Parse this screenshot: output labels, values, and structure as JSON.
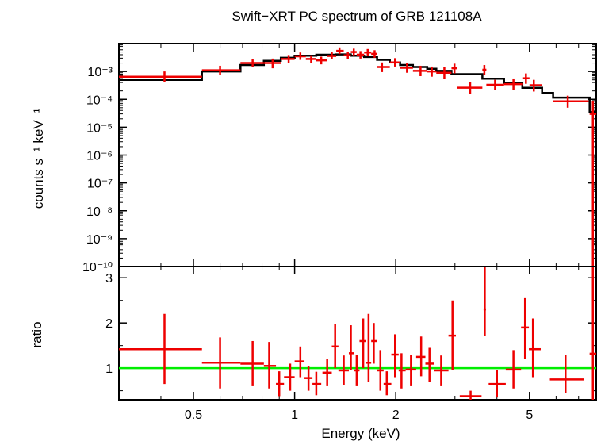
{
  "chart_data": {
    "type": "scatter",
    "title": "Swift−XRT PC spectrum of GRB 121108A",
    "xlabel": "Energy (keV)",
    "x_scale": "log",
    "xlim": [
      0.3,
      7.9
    ],
    "x_ticks": [
      {
        "value": 0.5,
        "label": "0.5"
      },
      {
        "value": 1,
        "label": "1"
      },
      {
        "value": 2,
        "label": "2"
      },
      {
        "value": 5,
        "label": "5"
      }
    ],
    "colors": {
      "data": "#ee0000",
      "model": "#000000",
      "unity": "#00ee00"
    },
    "panels": [
      {
        "id": "spectrum",
        "ylabel": "counts s⁻¹ keV⁻¹",
        "y_scale": "log",
        "ylim": [
          1e-10,
          0.01
        ],
        "y_ticks": [
          {
            "value": 0.001,
            "label": "10⁻³"
          },
          {
            "value": 0.0001,
            "label": "10⁻⁴"
          },
          {
            "value": 1e-05,
            "label": "10⁻⁵"
          },
          {
            "value": 1e-06,
            "label": "10⁻⁶"
          },
          {
            "value": 1e-07,
            "label": "10⁻⁷"
          },
          {
            "value": 1e-08,
            "label": "10⁻⁸"
          },
          {
            "value": 1e-09,
            "label": "10⁻⁹"
          },
          {
            "value": 1e-10,
            "label": "10⁻¹⁰"
          }
        ],
        "data": [
          {
            "x": 0.41,
            "xlo": 0.3,
            "xhi": 0.53,
            "y": 0.00065,
            "ylo": 0.00042,
            "yhi": 0.001
          },
          {
            "x": 0.6,
            "xlo": 0.53,
            "xhi": 0.69,
            "y": 0.0011,
            "ylo": 0.00075,
            "yhi": 0.0016
          },
          {
            "x": 0.75,
            "xlo": 0.69,
            "xhi": 0.81,
            "y": 0.002,
            "ylo": 0.0014,
            "yhi": 0.0028
          },
          {
            "x": 0.86,
            "xlo": 0.81,
            "xhi": 0.91,
            "y": 0.002,
            "ylo": 0.0013,
            "yhi": 0.0029
          },
          {
            "x": 0.96,
            "xlo": 0.91,
            "xhi": 1.0,
            "y": 0.0028,
            "ylo": 0.002,
            "yhi": 0.0039
          },
          {
            "x": 1.04,
            "xlo": 1.0,
            "xhi": 1.08,
            "y": 0.0035,
            "ylo": 0.0026,
            "yhi": 0.0048
          },
          {
            "x": 1.12,
            "xlo": 1.08,
            "xhi": 1.16,
            "y": 0.0028,
            "ylo": 0.002,
            "yhi": 0.0038
          },
          {
            "x": 1.2,
            "xlo": 1.16,
            "xhi": 1.25,
            "y": 0.0025,
            "ylo": 0.0018,
            "yhi": 0.0034
          },
          {
            "x": 1.29,
            "xlo": 1.25,
            "xhi": 1.33,
            "y": 0.0036,
            "ylo": 0.0027,
            "yhi": 0.0049
          },
          {
            "x": 1.36,
            "xlo": 1.33,
            "xhi": 1.4,
            "y": 0.0055,
            "ylo": 0.0042,
            "yhi": 0.0073
          },
          {
            "x": 1.44,
            "xlo": 1.4,
            "xhi": 1.47,
            "y": 0.0038,
            "ylo": 0.0028,
            "yhi": 0.0052
          },
          {
            "x": 1.5,
            "xlo": 1.47,
            "xhi": 1.53,
            "y": 0.005,
            "ylo": 0.0038,
            "yhi": 0.0066
          },
          {
            "x": 1.57,
            "xlo": 1.53,
            "xhi": 1.61,
            "y": 0.004,
            "ylo": 0.0029,
            "yhi": 0.0054
          },
          {
            "x": 1.65,
            "xlo": 1.61,
            "xhi": 1.69,
            "y": 0.0048,
            "ylo": 0.0036,
            "yhi": 0.0064
          },
          {
            "x": 1.73,
            "xlo": 1.69,
            "xhi": 1.76,
            "y": 0.0043,
            "ylo": 0.0031,
            "yhi": 0.0058
          },
          {
            "x": 1.82,
            "xlo": 1.76,
            "xhi": 1.92,
            "y": 0.00145,
            "ylo": 0.00095,
            "yhi": 0.0021
          },
          {
            "x": 1.99,
            "xlo": 1.92,
            "xhi": 2.06,
            "y": 0.0021,
            "ylo": 0.0015,
            "yhi": 0.003
          },
          {
            "x": 2.16,
            "xlo": 2.06,
            "xhi": 2.25,
            "y": 0.00135,
            "ylo": 0.0009,
            "yhi": 0.002
          },
          {
            "x": 2.37,
            "xlo": 2.25,
            "xhi": 2.48,
            "y": 0.00105,
            "ylo": 0.00068,
            "yhi": 0.0016
          },
          {
            "x": 2.56,
            "xlo": 2.48,
            "xhi": 2.64,
            "y": 0.001,
            "ylo": 0.00065,
            "yhi": 0.0015
          },
          {
            "x": 2.79,
            "xlo": 2.64,
            "xhi": 2.93,
            "y": 0.0009,
            "ylo": 0.00055,
            "yhi": 0.0014
          },
          {
            "x": 2.99,
            "xlo": 2.93,
            "xhi": 3.05,
            "y": 0.0013,
            "ylo": 0.00085,
            "yhi": 0.0019
          },
          {
            "x": 3.33,
            "xlo": 3.05,
            "xhi": 3.62,
            "y": 0.00026,
            "ylo": 0.00016,
            "yhi": 0.00042
          },
          {
            "x": 3.67,
            "xlo": 3.62,
            "xhi": 3.72,
            "y": 0.00115,
            "ylo": 0.00075,
            "yhi": 0.0017
          },
          {
            "x": 3.95,
            "xlo": 3.72,
            "xhi": 4.2,
            "y": 0.00033,
            "ylo": 0.00021,
            "yhi": 0.0005
          },
          {
            "x": 4.48,
            "xlo": 4.2,
            "xhi": 4.76,
            "y": 0.00035,
            "ylo": 0.00022,
            "yhi": 0.00056
          },
          {
            "x": 4.88,
            "xlo": 4.76,
            "xhi": 5.0,
            "y": 0.00057,
            "ylo": 0.00036,
            "yhi": 0.00085
          },
          {
            "x": 5.15,
            "xlo": 5.0,
            "xhi": 5.45,
            "y": 0.00032,
            "ylo": 0.00019,
            "yhi": 0.0005
          },
          {
            "x": 6.5,
            "xlo": 5.88,
            "xhi": 7.5,
            "y": 8.5e-05,
            "ylo": 5e-05,
            "yhi": 0.000135
          },
          {
            "x": 7.72,
            "xlo": 7.55,
            "xhi": 7.9,
            "y": 3e-05,
            "ylo": 1e-10,
            "yhi": 9e-05
          }
        ],
        "model": [
          {
            "xlo": 0.3,
            "xhi": 0.53,
            "y": 0.0005
          },
          {
            "xlo": 0.53,
            "xhi": 0.69,
            "y": 0.001
          },
          {
            "xlo": 0.69,
            "xhi": 0.81,
            "y": 0.0017
          },
          {
            "xlo": 0.81,
            "xhi": 0.91,
            "y": 0.0024
          },
          {
            "xlo": 0.91,
            "xhi": 1.0,
            "y": 0.0031
          },
          {
            "xlo": 1.0,
            "xhi": 1.16,
            "y": 0.0037
          },
          {
            "xlo": 1.16,
            "xhi": 1.33,
            "y": 0.004
          },
          {
            "xlo": 1.33,
            "xhi": 1.47,
            "y": 0.0041
          },
          {
            "xlo": 1.47,
            "xhi": 1.61,
            "y": 0.0037
          },
          {
            "xlo": 1.61,
            "xhi": 1.76,
            "y": 0.0033
          },
          {
            "xlo": 1.76,
            "xhi": 1.92,
            "y": 0.0026
          },
          {
            "xlo": 1.92,
            "xhi": 2.06,
            "y": 0.0021
          },
          {
            "xlo": 2.06,
            "xhi": 2.25,
            "y": 0.0017
          },
          {
            "xlo": 2.25,
            "xhi": 2.48,
            "y": 0.00145
          },
          {
            "xlo": 2.48,
            "xhi": 2.64,
            "y": 0.00125
          },
          {
            "xlo": 2.64,
            "xhi": 2.93,
            "y": 0.00105
          },
          {
            "xlo": 2.93,
            "xhi": 3.62,
            "y": 0.0008
          },
          {
            "xlo": 3.62,
            "xhi": 4.2,
            "y": 0.00055
          },
          {
            "xlo": 4.2,
            "xhi": 4.76,
            "y": 0.00039
          },
          {
            "xlo": 4.76,
            "xhi": 5.45,
            "y": 0.00026
          },
          {
            "xlo": 5.45,
            "xhi": 5.88,
            "y": 0.00017
          },
          {
            "xlo": 5.88,
            "xhi": 7.55,
            "y": 0.000115
          },
          {
            "xlo": 7.55,
            "xhi": 7.9,
            "y": 3.5e-05
          }
        ]
      },
      {
        "id": "ratio",
        "ylabel": "ratio",
        "y_scale": "linear",
        "ylim": [
          0.3,
          3.25
        ],
        "y_ticks": [
          {
            "value": 1,
            "label": "1"
          },
          {
            "value": 2,
            "label": "2"
          },
          {
            "value": 3,
            "label": "3"
          }
        ],
        "reference_line": 1,
        "data": [
          {
            "x": 0.41,
            "xlo": 0.3,
            "xhi": 0.53,
            "y": 1.42,
            "ylo": 0.65,
            "yhi": 2.2
          },
          {
            "x": 0.6,
            "xlo": 0.53,
            "xhi": 0.69,
            "y": 1.12,
            "ylo": 0.55,
            "yhi": 1.68
          },
          {
            "x": 0.75,
            "xlo": 0.69,
            "xhi": 0.81,
            "y": 1.1,
            "ylo": 0.6,
            "yhi": 1.6
          },
          {
            "x": 0.84,
            "xlo": 0.81,
            "xhi": 0.88,
            "y": 1.05,
            "ylo": 0.55,
            "yhi": 1.58
          },
          {
            "x": 0.9,
            "xlo": 0.88,
            "xhi": 0.93,
            "y": 0.65,
            "ylo": 0.38,
            "yhi": 0.93
          },
          {
            "x": 0.97,
            "xlo": 0.93,
            "xhi": 1.0,
            "y": 0.8,
            "ylo": 0.5,
            "yhi": 1.1
          },
          {
            "x": 1.04,
            "xlo": 1.0,
            "xhi": 1.07,
            "y": 1.15,
            "ylo": 0.8,
            "yhi": 1.48
          },
          {
            "x": 1.1,
            "xlo": 1.07,
            "xhi": 1.13,
            "y": 0.78,
            "ylo": 0.5,
            "yhi": 1.05
          },
          {
            "x": 1.16,
            "xlo": 1.13,
            "xhi": 1.2,
            "y": 0.65,
            "ylo": 0.4,
            "yhi": 0.92
          },
          {
            "x": 1.25,
            "xlo": 1.21,
            "xhi": 1.29,
            "y": 0.9,
            "ylo": 0.6,
            "yhi": 1.2
          },
          {
            "x": 1.32,
            "xlo": 1.29,
            "xhi": 1.35,
            "y": 1.48,
            "ylo": 1.0,
            "yhi": 1.98
          },
          {
            "x": 1.4,
            "xlo": 1.35,
            "xhi": 1.45,
            "y": 0.95,
            "ylo": 0.62,
            "yhi": 1.28
          },
          {
            "x": 1.47,
            "xlo": 1.45,
            "xhi": 1.5,
            "y": 1.33,
            "ylo": 0.95,
            "yhi": 1.95
          },
          {
            "x": 1.53,
            "xlo": 1.5,
            "xhi": 1.56,
            "y": 0.95,
            "ylo": 0.6,
            "yhi": 1.3
          },
          {
            "x": 1.6,
            "xlo": 1.56,
            "xhi": 1.63,
            "y": 1.6,
            "ylo": 1.0,
            "yhi": 2.1
          },
          {
            "x": 1.66,
            "xlo": 1.63,
            "xhi": 1.69,
            "y": 1.12,
            "ylo": 0.7,
            "yhi": 2.2
          },
          {
            "x": 1.72,
            "xlo": 1.69,
            "xhi": 1.76,
            "y": 1.6,
            "ylo": 1.1,
            "yhi": 2.0
          },
          {
            "x": 1.8,
            "xlo": 1.76,
            "xhi": 1.84,
            "y": 0.95,
            "ylo": 0.5,
            "yhi": 1.4
          },
          {
            "x": 1.88,
            "xlo": 1.84,
            "xhi": 1.94,
            "y": 0.65,
            "ylo": 0.4,
            "yhi": 0.93
          },
          {
            "x": 1.99,
            "xlo": 1.94,
            "xhi": 2.04,
            "y": 1.3,
            "ylo": 0.8,
            "yhi": 1.75
          },
          {
            "x": 2.08,
            "xlo": 2.04,
            "xhi": 2.14,
            "y": 0.95,
            "ylo": 0.55,
            "yhi": 1.33
          },
          {
            "x": 2.22,
            "xlo": 2.14,
            "xhi": 2.3,
            "y": 0.97,
            "ylo": 0.6,
            "yhi": 1.3
          },
          {
            "x": 2.38,
            "xlo": 2.3,
            "xhi": 2.45,
            "y": 1.25,
            "ylo": 0.82,
            "yhi": 1.7
          },
          {
            "x": 2.52,
            "xlo": 2.45,
            "xhi": 2.6,
            "y": 1.1,
            "ylo": 0.7,
            "yhi": 1.45
          },
          {
            "x": 2.73,
            "xlo": 2.6,
            "xhi": 2.87,
            "y": 0.95,
            "ylo": 0.6,
            "yhi": 1.28
          },
          {
            "x": 2.95,
            "xlo": 2.87,
            "xhi": 3.02,
            "y": 1.72,
            "ylo": 0.95,
            "yhi": 2.5
          },
          {
            "x": 3.34,
            "xlo": 3.1,
            "xhi": 3.6,
            "y": 0.38,
            "ylo": 0.3,
            "yhi": 0.5
          },
          {
            "x": 3.68,
            "xlo": 3.65,
            "xhi": 3.71,
            "y": 2.3,
            "ylo": 1.72,
            "yhi": 3.25
          },
          {
            "x": 4.0,
            "xlo": 3.78,
            "xhi": 4.25,
            "y": 0.65,
            "ylo": 0.35,
            "yhi": 0.95
          },
          {
            "x": 4.48,
            "xlo": 4.25,
            "xhi": 4.72,
            "y": 0.97,
            "ylo": 0.55,
            "yhi": 1.4
          },
          {
            "x": 4.85,
            "xlo": 4.72,
            "xhi": 4.98,
            "y": 1.9,
            "ylo": 1.2,
            "yhi": 2.55
          },
          {
            "x": 5.12,
            "xlo": 4.98,
            "xhi": 5.4,
            "y": 1.42,
            "ylo": 0.8,
            "yhi": 2.1
          },
          {
            "x": 6.4,
            "xlo": 5.75,
            "xhi": 7.25,
            "y": 0.75,
            "ylo": 0.45,
            "yhi": 1.3
          },
          {
            "x": 7.72,
            "xlo": 7.55,
            "xhi": 7.9,
            "y": 1.32,
            "ylo": 0.3,
            "yhi": 3.25
          }
        ]
      }
    ]
  }
}
